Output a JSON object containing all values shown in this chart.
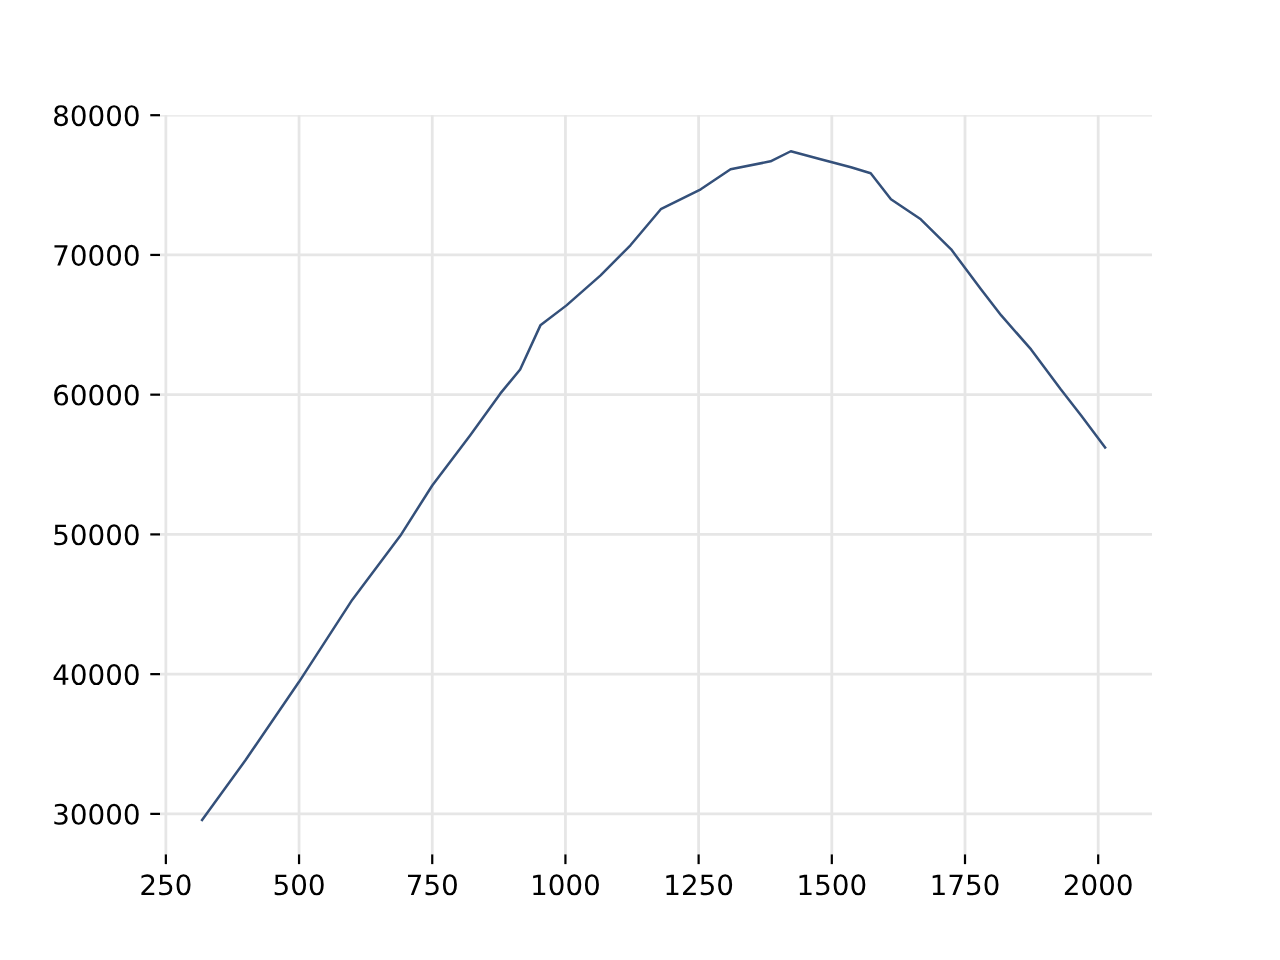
{
  "chart_data": {
    "type": "line",
    "x": [
      318,
      400,
      500,
      600,
      690,
      750,
      821,
      878,
      915,
      953,
      1002,
      1066,
      1122,
      1179,
      1254,
      1310,
      1385,
      1423,
      1479,
      1536,
      1573,
      1611,
      1667,
      1724,
      1780,
      1818,
      1874,
      1930,
      1968,
      2013
    ],
    "series": [
      {
        "color": "#34507a",
        "values": [
          29570,
          33870,
          39450,
          45330,
          49900,
          53500,
          57080,
          60090,
          61800,
          64960,
          66390,
          68540,
          70690,
          73270,
          74700,
          76130,
          76700,
          77420,
          76850,
          76280,
          75850,
          73980,
          72550,
          70400,
          67540,
          65670,
          63240,
          60370,
          58510,
          56220
        ]
      }
    ],
    "xlim": [
      239,
      2101
    ],
    "ylim": [
      27100,
      80000
    ],
    "xticks": [
      250,
      500,
      750,
      1000,
      1250,
      1500,
      1750,
      2000
    ],
    "yticks": [
      30000,
      40000,
      50000,
      60000,
      70000,
      80000
    ],
    "grid": true,
    "legend": false,
    "marker": "none",
    "line_style": "solid"
  }
}
